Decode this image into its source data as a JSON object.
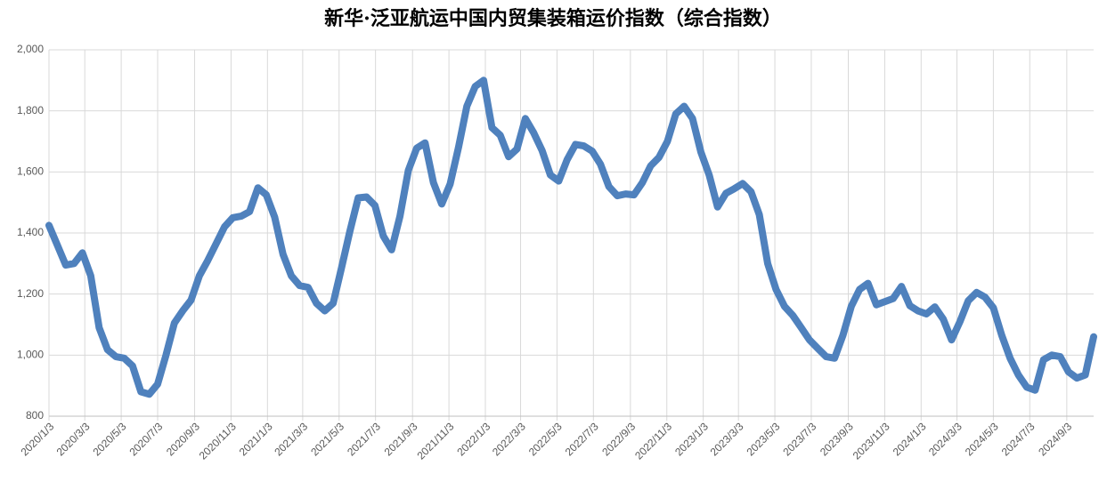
{
  "chart_data": {
    "type": "line",
    "title": "新华·泛亚航运中国内贸集装箱运价指数（综合指数）",
    "color": "#4f81bd",
    "grid": true,
    "x": [
      "2020/1/3",
      "2020/1/17",
      "2020/1/31",
      "2020/2/14",
      "2020/2/28",
      "2020/3/13",
      "2020/3/27",
      "2020/4/10",
      "2020/4/24",
      "2020/5/8",
      "2020/5/22",
      "2020/6/5",
      "2020/6/19",
      "2020/7/3",
      "2020/7/17",
      "2020/7/31",
      "2020/8/14",
      "2020/8/28",
      "2020/9/11",
      "2020/9/25",
      "2020/10/9",
      "2020/10/23",
      "2020/11/6",
      "2020/11/20",
      "2020/12/4",
      "2020/12/18",
      "2021/1/1",
      "2021/1/15",
      "2021/1/29",
      "2021/2/12",
      "2021/2/26",
      "2021/3/12",
      "2021/3/26",
      "2021/4/9",
      "2021/4/23",
      "2021/5/7",
      "2021/5/21",
      "2021/6/4",
      "2021/6/18",
      "2021/7/2",
      "2021/7/16",
      "2021/7/30",
      "2021/8/13",
      "2021/8/27",
      "2021/9/10",
      "2021/9/24",
      "2021/10/8",
      "2021/10/22",
      "2021/11/5",
      "2021/11/19",
      "2021/12/3",
      "2021/12/17",
      "2021/12/31",
      "2022/1/14",
      "2022/1/28",
      "2022/2/11",
      "2022/2/25",
      "2022/3/11",
      "2022/3/25",
      "2022/4/8",
      "2022/4/22",
      "2022/5/6",
      "2022/5/20",
      "2022/6/3",
      "2022/6/17",
      "2022/7/1",
      "2022/7/15",
      "2022/7/29",
      "2022/8/12",
      "2022/8/26",
      "2022/9/9",
      "2022/9/23",
      "2022/10/7",
      "2022/10/21",
      "2022/11/4",
      "2022/11/18",
      "2022/12/2",
      "2022/12/16",
      "2022/12/30",
      "2023/1/13",
      "2023/1/27",
      "2023/2/10",
      "2023/2/24",
      "2023/3/10",
      "2023/3/24",
      "2023/4/7",
      "2023/4/21",
      "2023/5/5",
      "2023/5/19",
      "2023/6/2",
      "2023/6/16",
      "2023/6/30",
      "2023/7/14",
      "2023/7/28",
      "2023/8/11",
      "2023/8/25",
      "2023/9/8",
      "2023/9/22",
      "2023/10/6",
      "2023/10/20",
      "2023/11/3",
      "2023/11/17",
      "2023/12/1",
      "2023/12/15",
      "2023/12/29",
      "2024/1/12",
      "2024/1/26",
      "2024/2/9",
      "2024/2/23",
      "2024/3/8",
      "2024/3/22",
      "2024/4/5",
      "2024/4/19",
      "2024/5/3",
      "2024/5/17",
      "2024/5/31",
      "2024/6/14",
      "2024/6/28",
      "2024/7/12",
      "2024/7/26",
      "2024/8/9",
      "2024/8/23",
      "2024/9/6",
      "2024/9/20",
      "2024/10/4",
      "2024/10/18"
    ],
    "values": [
      1425,
      1360,
      1295,
      1300,
      1335,
      1260,
      1090,
      1018,
      995,
      990,
      965,
      880,
      872,
      905,
      1000,
      1105,
      1145,
      1180,
      1260,
      1310,
      1365,
      1420,
      1450,
      1455,
      1470,
      1548,
      1525,
      1452,
      1330,
      1260,
      1228,
      1222,
      1170,
      1145,
      1170,
      1285,
      1405,
      1515,
      1518,
      1490,
      1390,
      1345,
      1455,
      1605,
      1678,
      1695,
      1565,
      1495,
      1560,
      1680,
      1815,
      1880,
      1900,
      1745,
      1720,
      1650,
      1675,
      1775,
      1728,
      1670,
      1590,
      1570,
      1640,
      1690,
      1685,
      1668,
      1625,
      1552,
      1522,
      1528,
      1525,
      1565,
      1620,
      1648,
      1700,
      1790,
      1815,
      1775,
      1665,
      1590,
      1485,
      1530,
      1545,
      1562,
      1535,
      1460,
      1300,
      1215,
      1160,
      1130,
      1090,
      1050,
      1022,
      995,
      990,
      1065,
      1160,
      1215,
      1235,
      1165,
      1175,
      1185,
      1225,
      1162,
      1145,
      1135,
      1158,
      1118,
      1050,
      1110,
      1178,
      1205,
      1190,
      1155,
      1065,
      990,
      935,
      895,
      885,
      985,
      1000,
      995,
      945,
      925,
      935,
      1060
    ],
    "xlim": [
      "2020/1/3",
      "2024/10/18"
    ],
    "xticks": [
      "2020/1/3",
      "2020/3/3",
      "2020/5/3",
      "2020/7/3",
      "2020/9/3",
      "2020/11/3",
      "2021/1/3",
      "2021/3/3",
      "2021/5/3",
      "2021/7/3",
      "2021/9/3",
      "2021/11/3",
      "2022/1/3",
      "2022/3/3",
      "2022/5/3",
      "2022/7/3",
      "2022/9/3",
      "2022/11/3",
      "2023/1/3",
      "2023/3/3",
      "2023/5/3",
      "2023/7/3",
      "2023/9/3",
      "2023/11/3",
      "2024/1/3",
      "2024/3/3",
      "2024/5/3",
      "2024/7/3",
      "2024/9/3"
    ],
    "ylim": [
      800,
      2000
    ],
    "yticks": [
      800,
      {
        "value": 1000,
        "label": "1,000"
      },
      {
        "value": 1200,
        "label": "1,200"
      },
      {
        "value": 1400,
        "label": "1,400"
      },
      {
        "value": 1600,
        "label": "1,600"
      },
      {
        "value": 1800,
        "label": "1,800"
      },
      {
        "value": 2000,
        "label": "2,000"
      }
    ]
  }
}
